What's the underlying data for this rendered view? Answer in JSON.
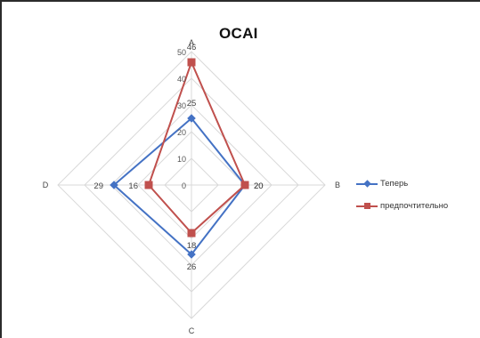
{
  "chart_data": {
    "type": "radar",
    "title": "OCAI",
    "axes": [
      "A",
      "B",
      "C",
      "D"
    ],
    "rmax": 50,
    "radial_ticks": [
      0,
      10,
      20,
      30,
      40,
      50
    ],
    "grid": true,
    "legend_position": "right",
    "series": [
      {
        "name": "Теперь",
        "color": "#4472C4",
        "marker": "diamond",
        "values": [
          25,
          20,
          26,
          29
        ]
      },
      {
        "name": "предпочтительно",
        "color": "#C0504D",
        "marker": "square",
        "values": [
          46,
          20,
          18,
          16
        ]
      }
    ]
  }
}
